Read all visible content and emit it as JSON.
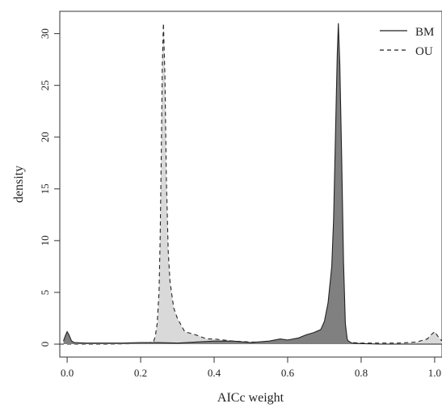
{
  "chart_data": {
    "type": "area",
    "title": "",
    "xlabel": "AICc weight",
    "ylabel": "density",
    "xlim": [
      -0.02,
      1.02
    ],
    "ylim": [
      0,
      32
    ],
    "x_ticks": [
      0.0,
      0.2,
      0.4,
      0.6,
      0.8,
      1.0
    ],
    "x_tick_labels": [
      "0.0",
      "0.2",
      "0.4",
      "0.6",
      "0.8",
      "1.0"
    ],
    "y_ticks": [
      0,
      5,
      10,
      15,
      20,
      25,
      30
    ],
    "y_tick_labels": [
      "0",
      "5",
      "10",
      "15",
      "20",
      "25",
      "30"
    ],
    "grid": false,
    "legend_position": "top-right",
    "series": [
      {
        "name": "BM",
        "line_style": "solid",
        "fill_color": "#808080",
        "x": [
          -0.01,
          -0.005,
          0.0,
          0.005,
          0.012,
          0.02,
          0.05,
          0.1,
          0.15,
          0.2,
          0.25,
          0.3,
          0.35,
          0.4,
          0.45,
          0.5,
          0.55,
          0.58,
          0.6,
          0.63,
          0.65,
          0.67,
          0.69,
          0.7,
          0.71,
          0.72,
          0.725,
          0.73,
          0.735,
          0.738,
          0.742,
          0.747,
          0.752,
          0.757,
          0.762,
          0.765,
          0.775,
          0.8,
          0.85,
          0.9,
          0.95,
          1.0,
          1.02
        ],
        "y": [
          0.3,
          0.8,
          1.2,
          0.9,
          0.3,
          0.15,
          0.1,
          0.1,
          0.1,
          0.15,
          0.15,
          0.1,
          0.2,
          0.3,
          0.3,
          0.15,
          0.3,
          0.5,
          0.4,
          0.6,
          0.9,
          1.1,
          1.4,
          2.2,
          4.0,
          7.5,
          12.0,
          20.0,
          28.0,
          31.0,
          27.0,
          18.0,
          8.0,
          2.0,
          0.5,
          0.3,
          0.1,
          0.05,
          0.0,
          0.0,
          0.0,
          0.0,
          0.0
        ]
      },
      {
        "name": "OU",
        "line_style": "dashed",
        "fill_color": "#d9d9d9",
        "x": [
          -0.02,
          0.1,
          0.2,
          0.235,
          0.24,
          0.245,
          0.25,
          0.253,
          0.256,
          0.259,
          0.262,
          0.266,
          0.27,
          0.275,
          0.28,
          0.29,
          0.3,
          0.32,
          0.35,
          0.38,
          0.4,
          0.45,
          0.5,
          0.55,
          0.6,
          0.65,
          0.7,
          0.75,
          0.8,
          0.85,
          0.9,
          0.95,
          0.98,
          0.99,
          1.0,
          1.01,
          1.02
        ],
        "y": [
          0.0,
          0.0,
          0.05,
          0.2,
          0.8,
          2.0,
          5.0,
          10.0,
          18.0,
          27.0,
          31.0,
          26.0,
          16.0,
          9.0,
          6.0,
          3.5,
          2.5,
          1.2,
          0.9,
          0.5,
          0.5,
          0.3,
          0.2,
          0.2,
          0.3,
          0.3,
          0.3,
          0.2,
          0.1,
          0.1,
          0.1,
          0.2,
          0.5,
          0.9,
          1.2,
          0.7,
          0.3
        ]
      }
    ]
  }
}
